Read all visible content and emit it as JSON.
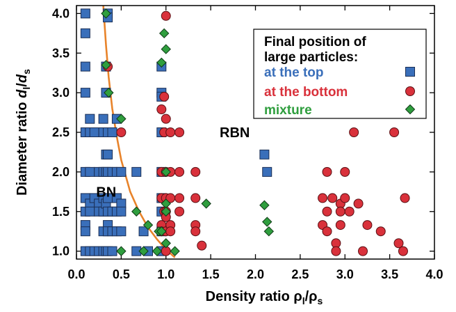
{
  "chart_data": {
    "type": "scatter",
    "title": "",
    "xlabel_main": "Density ratio ρ",
    "xlabel_sub1": "l",
    "xlabel_mid": "/ρ",
    "xlabel_sub2": "s",
    "ylabel_main": "Diameter ratio ",
    "ylabel_var1": "d",
    "ylabel_sub1": "l",
    "ylabel_slash": "/",
    "ylabel_var2": "d",
    "ylabel_sub2": "s",
    "xlim": [
      0.0,
      4.0
    ],
    "ylim": [
      0.9,
      4.1
    ],
    "xticks": [
      "0.0",
      "0.5",
      "1.0",
      "1.5",
      "2.0",
      "2.5",
      "3.0",
      "3.5",
      "4.0"
    ],
    "yticks": [
      "1.0",
      "1.5",
      "2.0",
      "2.5",
      "3.0",
      "3.5",
      "4.0"
    ],
    "grid": false,
    "legend": {
      "position": "top-right",
      "title_line1": "Final position of",
      "title_line2": "large particles:"
    },
    "annotations": [
      {
        "text": "RBN",
        "x": 1.6,
        "y": 2.5
      },
      {
        "text": "BN",
        "x": 0.22,
        "y": 1.75
      }
    ],
    "curve": {
      "color": "#e8832a",
      "points": [
        [
          0.3,
          4.1
        ],
        [
          0.33,
          3.6
        ],
        [
          0.36,
          3.2
        ],
        [
          0.4,
          2.8
        ],
        [
          0.45,
          2.45
        ],
        [
          0.5,
          2.15
        ],
        [
          0.6,
          1.75
        ],
        [
          0.7,
          1.5
        ],
        [
          0.8,
          1.3
        ],
        [
          0.9,
          1.15
        ],
        [
          1.0,
          1.02
        ],
        [
          1.1,
          0.92
        ]
      ]
    },
    "series": [
      {
        "name": "at the top",
        "marker": "square",
        "color": "#3a6fba",
        "points": [
          [
            0.1,
            4.0
          ],
          [
            0.1,
            3.75
          ],
          [
            0.1,
            3.33
          ],
          [
            0.1,
            3.0
          ],
          [
            0.1,
            2.5
          ],
          [
            0.1,
            2.0
          ],
          [
            0.1,
            1.67
          ],
          [
            0.1,
            1.5
          ],
          [
            0.1,
            1.33
          ],
          [
            0.1,
            1.25
          ],
          [
            0.1,
            1.0
          ],
          [
            0.15,
            2.67
          ],
          [
            0.15,
            2.5
          ],
          [
            0.15,
            2.0
          ],
          [
            0.15,
            1.6
          ],
          [
            0.15,
            1.5
          ],
          [
            0.15,
            1.0
          ],
          [
            0.2,
            2.5
          ],
          [
            0.2,
            1.67
          ],
          [
            0.2,
            1.0
          ],
          [
            0.25,
            2.0
          ],
          [
            0.25,
            1.6
          ],
          [
            0.25,
            1.5
          ],
          [
            0.25,
            1.0
          ],
          [
            0.3,
            2.67
          ],
          [
            0.3,
            2.5
          ],
          [
            0.3,
            2.0
          ],
          [
            0.3,
            1.67
          ],
          [
            0.3,
            1.5
          ],
          [
            0.3,
            1.25
          ],
          [
            0.3,
            1.0
          ],
          [
            0.33,
            3.33
          ],
          [
            0.33,
            3.0
          ],
          [
            0.33,
            2.22
          ],
          [
            0.33,
            2.0
          ],
          [
            0.33,
            1.6
          ],
          [
            0.33,
            1.0
          ],
          [
            0.35,
            4.0
          ],
          [
            0.35,
            3.95
          ],
          [
            0.35,
            2.5
          ],
          [
            0.35,
            2.22
          ],
          [
            0.35,
            2.0
          ],
          [
            0.35,
            1.67
          ],
          [
            0.35,
            1.5
          ],
          [
            0.35,
            1.33
          ],
          [
            0.35,
            1.25
          ],
          [
            0.35,
            1.0
          ],
          [
            0.4,
            2.5
          ],
          [
            0.4,
            2.0
          ],
          [
            0.4,
            1.5
          ],
          [
            0.4,
            1.25
          ],
          [
            0.4,
            1.0
          ],
          [
            0.45,
            2.67
          ],
          [
            0.45,
            2.0
          ],
          [
            0.45,
            1.67
          ],
          [
            0.45,
            1.5
          ],
          [
            0.45,
            1.25
          ],
          [
            0.5,
            2.0
          ],
          [
            0.5,
            1.6
          ],
          [
            0.5,
            1.5
          ],
          [
            0.5,
            1.25
          ],
          [
            0.67,
            2.0
          ],
          [
            0.67,
            1.0
          ],
          [
            0.75,
            1.25
          ],
          [
            0.8,
            1.0
          ],
          [
            0.95,
            3.33
          ],
          [
            0.95,
            3.0
          ],
          [
            0.95,
            2.95
          ],
          [
            0.95,
            2.5
          ],
          [
            0.95,
            2.0
          ],
          [
            0.95,
            1.67
          ],
          [
            0.95,
            1.5
          ],
          [
            0.95,
            1.25
          ],
          [
            0.95,
            1.0
          ],
          [
            2.1,
            2.22
          ],
          [
            2.13,
            2.0
          ]
        ]
      },
      {
        "name": "at the bottom",
        "marker": "circle",
        "color": "#d9313b",
        "points": [
          [
            0.35,
            3.33
          ],
          [
            0.5,
            2.5
          ],
          [
            0.95,
            2.79
          ],
          [
            0.95,
            2.0
          ],
          [
            0.95,
            1.67
          ],
          [
            0.95,
            1.33
          ],
          [
            0.95,
            1.25
          ],
          [
            0.98,
            2.95
          ],
          [
            0.98,
            2.5
          ],
          [
            0.98,
            1.5
          ],
          [
            1.0,
            3.97
          ],
          [
            1.0,
            2.67
          ],
          [
            1.0,
            2.0
          ],
          [
            1.0,
            1.67
          ],
          [
            1.0,
            1.5
          ],
          [
            1.0,
            1.43
          ],
          [
            1.0,
            1.25
          ],
          [
            1.0,
            1.0
          ],
          [
            1.05,
            2.5
          ],
          [
            1.05,
            2.0
          ],
          [
            1.05,
            1.67
          ],
          [
            1.05,
            1.33
          ],
          [
            1.05,
            1.25
          ],
          [
            1.15,
            2.5
          ],
          [
            1.15,
            2.0
          ],
          [
            1.15,
            1.67
          ],
          [
            1.15,
            1.5
          ],
          [
            1.33,
            2.0
          ],
          [
            1.33,
            1.33
          ],
          [
            1.33,
            1.25
          ],
          [
            1.33,
            1.67
          ],
          [
            1.4,
            1.07
          ],
          [
            2.8,
            2.0
          ],
          [
            2.75,
            1.67
          ],
          [
            2.8,
            1.5
          ],
          [
            2.75,
            1.33
          ],
          [
            2.8,
            1.25
          ],
          [
            2.86,
            1.67
          ],
          [
            2.9,
            1.1
          ],
          [
            2.9,
            1.0
          ],
          [
            2.95,
            1.6
          ],
          [
            2.95,
            1.5
          ],
          [
            2.95,
            1.33
          ],
          [
            3.0,
            2.0
          ],
          [
            3.0,
            1.67
          ],
          [
            3.05,
            1.5
          ],
          [
            3.1,
            2.5
          ],
          [
            3.15,
            1.6
          ],
          [
            3.2,
            1.0
          ],
          [
            3.25,
            1.33
          ],
          [
            3.4,
            1.25
          ],
          [
            3.55,
            2.5
          ],
          [
            3.6,
            1.1
          ],
          [
            3.65,
            1.0
          ],
          [
            3.67,
            1.67
          ]
        ]
      },
      {
        "name": "mixture",
        "marker": "diamond",
        "color": "#2f9e3e",
        "points": [
          [
            0.33,
            4.0
          ],
          [
            0.33,
            3.35
          ],
          [
            0.36,
            3.0
          ],
          [
            0.5,
            2.67
          ],
          [
            0.5,
            1.0
          ],
          [
            0.67,
            1.5
          ],
          [
            0.75,
            1.0
          ],
          [
            0.8,
            1.33
          ],
          [
            0.9,
            1.0
          ],
          [
            0.92,
            1.25
          ],
          [
            0.95,
            3.38
          ],
          [
            0.95,
            1.25
          ],
          [
            0.98,
            3.75
          ],
          [
            1.0,
            3.55
          ],
          [
            1.0,
            1.6
          ],
          [
            1.0,
            1.5
          ],
          [
            1.0,
            1.1
          ],
          [
            1.0,
            2.0
          ],
          [
            1.1,
            1.0
          ],
          [
            1.45,
            1.6
          ],
          [
            2.1,
            1.58
          ],
          [
            2.13,
            1.37
          ],
          [
            2.15,
            1.25
          ]
        ]
      }
    ]
  }
}
